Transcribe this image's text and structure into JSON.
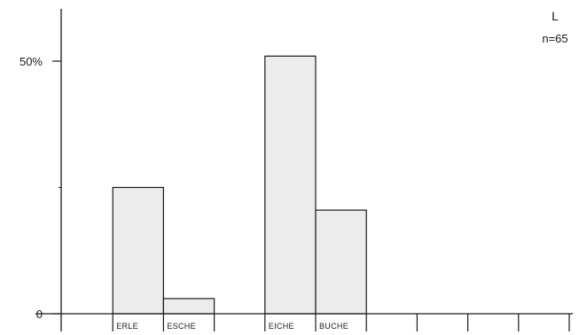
{
  "chart_data": {
    "type": "bar",
    "panel_label": "L",
    "sample_size": "n=65",
    "y_ticks": [
      {
        "value": 0,
        "label": "0"
      },
      {
        "value": 50,
        "label": "50%"
      }
    ],
    "ylim": [
      0,
      51
    ],
    "categories": [
      "",
      "ERLE",
      "ESCHE",
      "",
      "EICHE",
      "BUCHE",
      "",
      "",
      "",
      ""
    ],
    "values": [
      0,
      25,
      3,
      0,
      51,
      20.5,
      0,
      0,
      0,
      0
    ],
    "colors": {
      "bar_fill": "#ececec",
      "stroke": "#1a1a1a"
    }
  }
}
